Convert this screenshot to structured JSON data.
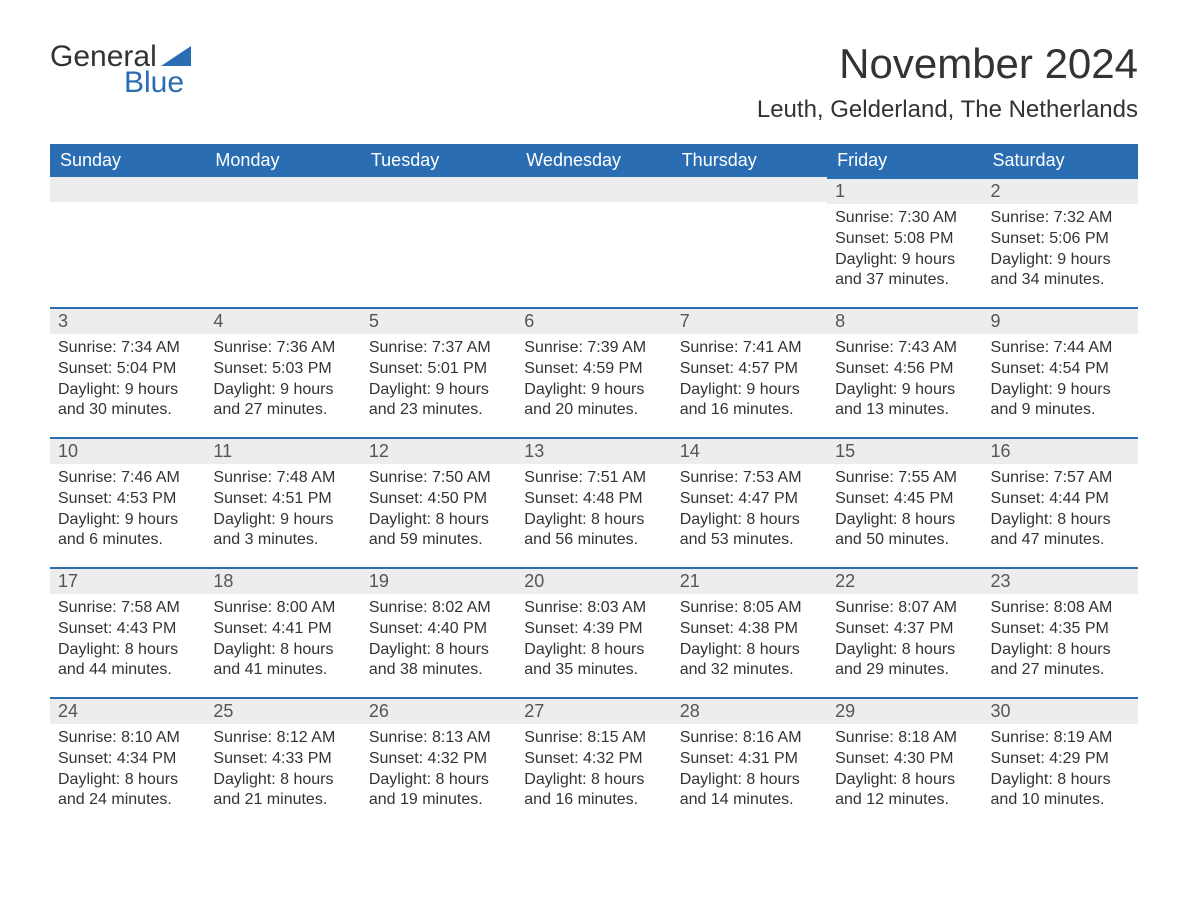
{
  "logo": {
    "word1": "General",
    "word2": "Blue",
    "triangle_color": "#2a6db2"
  },
  "title": "November 2024",
  "location": "Leuth, Gelderland, The Netherlands",
  "colors": {
    "header_bg": "#2a6db2",
    "header_text": "#ffffff",
    "daynum_bg": "#ededed",
    "border": "#2a6db2",
    "text": "#333333"
  },
  "fonts": {
    "title_size": 42,
    "location_size": 24,
    "header_size": 18,
    "daynum_size": 18,
    "body_size": 16
  },
  "weekdays": [
    "Sunday",
    "Monday",
    "Tuesday",
    "Wednesday",
    "Thursday",
    "Friday",
    "Saturday"
  ],
  "weeks": [
    [
      null,
      null,
      null,
      null,
      null,
      {
        "n": "1",
        "sunrise": "7:30 AM",
        "sunset": "5:08 PM",
        "dl1": "Daylight: 9 hours",
        "dl2": "and 37 minutes."
      },
      {
        "n": "2",
        "sunrise": "7:32 AM",
        "sunset": "5:06 PM",
        "dl1": "Daylight: 9 hours",
        "dl2": "and 34 minutes."
      }
    ],
    [
      {
        "n": "3",
        "sunrise": "7:34 AM",
        "sunset": "5:04 PM",
        "dl1": "Daylight: 9 hours",
        "dl2": "and 30 minutes."
      },
      {
        "n": "4",
        "sunrise": "7:36 AM",
        "sunset": "5:03 PM",
        "dl1": "Daylight: 9 hours",
        "dl2": "and 27 minutes."
      },
      {
        "n": "5",
        "sunrise": "7:37 AM",
        "sunset": "5:01 PM",
        "dl1": "Daylight: 9 hours",
        "dl2": "and 23 minutes."
      },
      {
        "n": "6",
        "sunrise": "7:39 AM",
        "sunset": "4:59 PM",
        "dl1": "Daylight: 9 hours",
        "dl2": "and 20 minutes."
      },
      {
        "n": "7",
        "sunrise": "7:41 AM",
        "sunset": "4:57 PM",
        "dl1": "Daylight: 9 hours",
        "dl2": "and 16 minutes."
      },
      {
        "n": "8",
        "sunrise": "7:43 AM",
        "sunset": "4:56 PM",
        "dl1": "Daylight: 9 hours",
        "dl2": "and 13 minutes."
      },
      {
        "n": "9",
        "sunrise": "7:44 AM",
        "sunset": "4:54 PM",
        "dl1": "Daylight: 9 hours",
        "dl2": "and 9 minutes."
      }
    ],
    [
      {
        "n": "10",
        "sunrise": "7:46 AM",
        "sunset": "4:53 PM",
        "dl1": "Daylight: 9 hours",
        "dl2": "and 6 minutes."
      },
      {
        "n": "11",
        "sunrise": "7:48 AM",
        "sunset": "4:51 PM",
        "dl1": "Daylight: 9 hours",
        "dl2": "and 3 minutes."
      },
      {
        "n": "12",
        "sunrise": "7:50 AM",
        "sunset": "4:50 PM",
        "dl1": "Daylight: 8 hours",
        "dl2": "and 59 minutes."
      },
      {
        "n": "13",
        "sunrise": "7:51 AM",
        "sunset": "4:48 PM",
        "dl1": "Daylight: 8 hours",
        "dl2": "and 56 minutes."
      },
      {
        "n": "14",
        "sunrise": "7:53 AM",
        "sunset": "4:47 PM",
        "dl1": "Daylight: 8 hours",
        "dl2": "and 53 minutes."
      },
      {
        "n": "15",
        "sunrise": "7:55 AM",
        "sunset": "4:45 PM",
        "dl1": "Daylight: 8 hours",
        "dl2": "and 50 minutes."
      },
      {
        "n": "16",
        "sunrise": "7:57 AM",
        "sunset": "4:44 PM",
        "dl1": "Daylight: 8 hours",
        "dl2": "and 47 minutes."
      }
    ],
    [
      {
        "n": "17",
        "sunrise": "7:58 AM",
        "sunset": "4:43 PM",
        "dl1": "Daylight: 8 hours",
        "dl2": "and 44 minutes."
      },
      {
        "n": "18",
        "sunrise": "8:00 AM",
        "sunset": "4:41 PM",
        "dl1": "Daylight: 8 hours",
        "dl2": "and 41 minutes."
      },
      {
        "n": "19",
        "sunrise": "8:02 AM",
        "sunset": "4:40 PM",
        "dl1": "Daylight: 8 hours",
        "dl2": "and 38 minutes."
      },
      {
        "n": "20",
        "sunrise": "8:03 AM",
        "sunset": "4:39 PM",
        "dl1": "Daylight: 8 hours",
        "dl2": "and 35 minutes."
      },
      {
        "n": "21",
        "sunrise": "8:05 AM",
        "sunset": "4:38 PM",
        "dl1": "Daylight: 8 hours",
        "dl2": "and 32 minutes."
      },
      {
        "n": "22",
        "sunrise": "8:07 AM",
        "sunset": "4:37 PM",
        "dl1": "Daylight: 8 hours",
        "dl2": "and 29 minutes."
      },
      {
        "n": "23",
        "sunrise": "8:08 AM",
        "sunset": "4:35 PM",
        "dl1": "Daylight: 8 hours",
        "dl2": "and 27 minutes."
      }
    ],
    [
      {
        "n": "24",
        "sunrise": "8:10 AM",
        "sunset": "4:34 PM",
        "dl1": "Daylight: 8 hours",
        "dl2": "and 24 minutes."
      },
      {
        "n": "25",
        "sunrise": "8:12 AM",
        "sunset": "4:33 PM",
        "dl1": "Daylight: 8 hours",
        "dl2": "and 21 minutes."
      },
      {
        "n": "26",
        "sunrise": "8:13 AM",
        "sunset": "4:32 PM",
        "dl1": "Daylight: 8 hours",
        "dl2": "and 19 minutes."
      },
      {
        "n": "27",
        "sunrise": "8:15 AM",
        "sunset": "4:32 PM",
        "dl1": "Daylight: 8 hours",
        "dl2": "and 16 minutes."
      },
      {
        "n": "28",
        "sunrise": "8:16 AM",
        "sunset": "4:31 PM",
        "dl1": "Daylight: 8 hours",
        "dl2": "and 14 minutes."
      },
      {
        "n": "29",
        "sunrise": "8:18 AM",
        "sunset": "4:30 PM",
        "dl1": "Daylight: 8 hours",
        "dl2": "and 12 minutes."
      },
      {
        "n": "30",
        "sunrise": "8:19 AM",
        "sunset": "4:29 PM",
        "dl1": "Daylight: 8 hours",
        "dl2": "and 10 minutes."
      }
    ]
  ],
  "labels": {
    "sunrise": "Sunrise: ",
    "sunset": "Sunset: "
  }
}
